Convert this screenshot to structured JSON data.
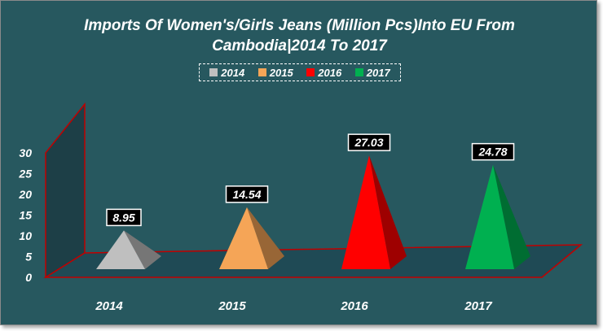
{
  "chart_data": {
    "type": "bar",
    "title_line1": "Imports Of Women's/Girls Jeans (Million Pcs)Into EU From",
    "title_line2": "Cambodia|2014 To 2017",
    "categories": [
      "2014",
      "2015",
      "2016",
      "2017"
    ],
    "values": [
      8.95,
      14.54,
      27.03,
      24.78
    ],
    "value_labels": [
      "8.95",
      "14.54",
      "27.03",
      "24.78"
    ],
    "colors": [
      "#bfbfbf",
      "#f5a557",
      "#ff0000",
      "#00b050"
    ],
    "legend": [
      "2014",
      "2015",
      "2016",
      "2017"
    ],
    "legend_placement": "top-center",
    "y_ticks": [
      "0",
      "5",
      "10",
      "15",
      "20",
      "25",
      "30"
    ],
    "ylim": [
      0,
      30
    ],
    "shape": "3d-pyramid",
    "grid": false
  }
}
